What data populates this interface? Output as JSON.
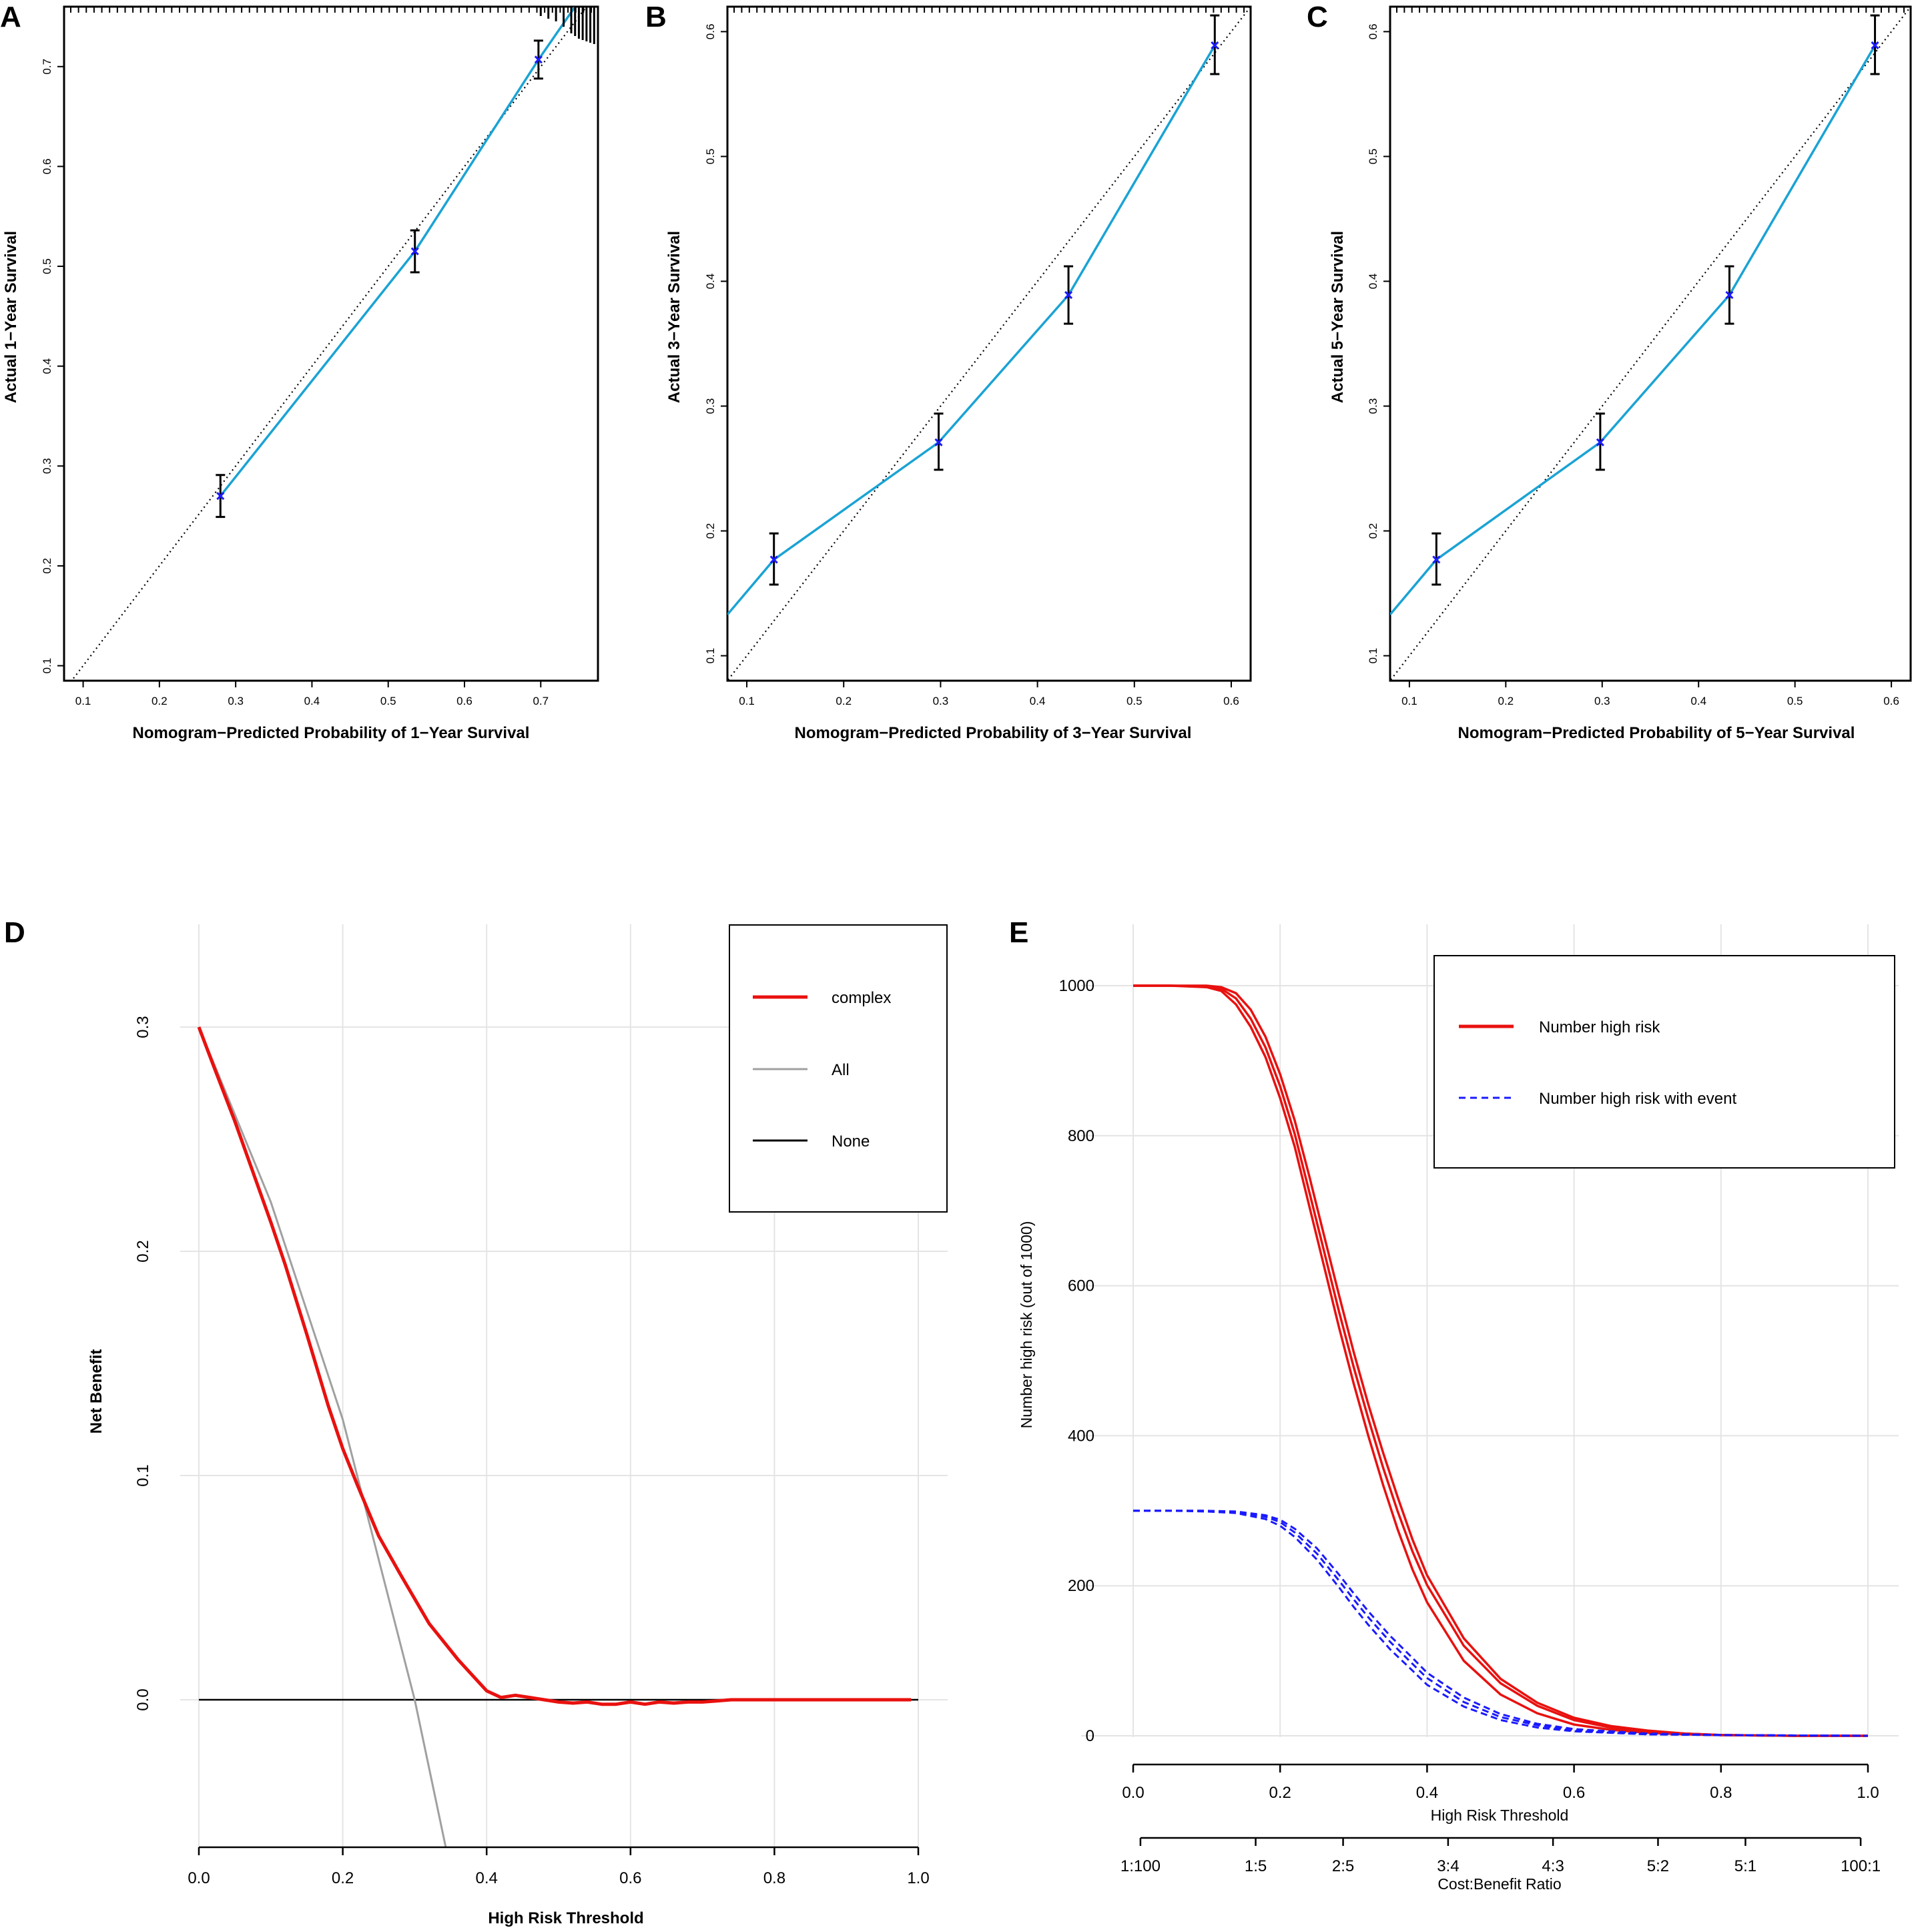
{
  "panels": [
    {
      "letter": "A",
      "xlabel": "Nomogram−Predicted Probability of 1−Year Survival",
      "ylabel": "Actual 1−Year Survival",
      "xticks": [
        "0.1",
        "0.2",
        "0.3",
        "0.4",
        "0.5",
        "0.6",
        "0.7"
      ],
      "yticks": [
        "0.1",
        "0.2",
        "0.3",
        "0.4",
        "0.5",
        "0.6",
        "0.7"
      ]
    },
    {
      "letter": "B",
      "xlabel": "Nomogram−Predicted Probability of 3−Year Survival",
      "ylabel": "Actual 3−Year Survival",
      "xticks": [
        "0.1",
        "0.2",
        "0.3",
        "0.4",
        "0.5",
        "0.6"
      ],
      "yticks": [
        "0.1",
        "0.2",
        "0.3",
        "0.4",
        "0.5",
        "0.6"
      ]
    },
    {
      "letter": "C",
      "xlabel": "Nomogram−Predicted Probability of 5−Year Survival",
      "ylabel": "Actual 5−Year Survival",
      "xticks": [
        "0.1",
        "0.2",
        "0.3",
        "0.4",
        "0.5",
        "0.6"
      ],
      "yticks": [
        "0.1",
        "0.2",
        "0.3",
        "0.4",
        "0.5",
        "0.6"
      ]
    },
    {
      "letter": "D",
      "xlabel": "High Risk Threshold",
      "ylabel": "Net Benefit",
      "xticks": [
        "0.0",
        "0.2",
        "0.4",
        "0.6",
        "0.8",
        "1.0"
      ],
      "yticks": [
        "0.0",
        "0.1",
        "0.2",
        "0.3"
      ],
      "legend": [
        "complex",
        "All",
        "None"
      ]
    },
    {
      "letter": "E",
      "xlabel": "High Risk Threshold",
      "ylabel": "Number high risk (out of 1000)",
      "xlabel2": "Cost:Benefit Ratio",
      "xticks": [
        "0.0",
        "0.2",
        "0.4",
        "0.6",
        "0.8",
        "1.0"
      ],
      "xticks2": [
        "1:100",
        "1:5",
        "2:5",
        "3:4",
        "4:3",
        "5:2",
        "5:1",
        "100:1"
      ],
      "yticks": [
        "0",
        "200",
        "400",
        "600",
        "800",
        "1000"
      ],
      "legend": [
        "Number high risk",
        "Number high risk with event"
      ]
    }
  ],
  "colors": {
    "calibration_line": "#1aa3d4",
    "points": "#1a1aff",
    "complex": "#e8110f",
    "all": "#a0a0a0",
    "none": "#000000",
    "high_risk": "#e8110f",
    "with_event": "#1a1aff",
    "grid": "#e4e4e4"
  },
  "chart_data": [
    {
      "type": "line",
      "panel": "A",
      "title": "",
      "xlabel": "Nomogram−Predicted Probability of 1−Year Survival",
      "ylabel": "Actual 1−Year Survival",
      "xlim": [
        0.075,
        0.775
      ],
      "ylim": [
        0.085,
        0.76
      ],
      "reference_line": "ideal (y = x), dotted",
      "calibration_curve": {
        "x": [
          0.28,
          0.535,
          0.697,
          0.745
        ],
        "y": [
          0.27,
          0.515,
          0.707,
          0.76
        ]
      },
      "points": [
        {
          "x": 0.28,
          "y": 0.27,
          "lo": 0.249,
          "hi": 0.291
        },
        {
          "x": 0.535,
          "y": 0.515,
          "lo": 0.494,
          "hi": 0.536
        },
        {
          "x": 0.697,
          "y": 0.707,
          "lo": 0.688,
          "hi": 0.726
        }
      ]
    },
    {
      "type": "line",
      "panel": "B",
      "title": "",
      "xlabel": "Nomogram−Predicted Probability of 3−Year Survival",
      "ylabel": "Actual 3−Year Survival",
      "xlim": [
        0.08,
        0.62
      ],
      "ylim": [
        0.08,
        0.62
      ],
      "reference_line": "ideal (y = x), dotted",
      "calibration_curve": {
        "x": [
          0.08,
          0.128,
          0.298,
          0.432,
          0.583
        ],
        "y": [
          0.133,
          0.177,
          0.271,
          0.389,
          0.589
        ]
      },
      "points": [
        {
          "x": 0.128,
          "y": 0.177,
          "lo": 0.157,
          "hi": 0.198
        },
        {
          "x": 0.298,
          "y": 0.271,
          "lo": 0.249,
          "hi": 0.294
        },
        {
          "x": 0.432,
          "y": 0.389,
          "lo": 0.366,
          "hi": 0.412
        },
        {
          "x": 0.583,
          "y": 0.589,
          "lo": 0.566,
          "hi": 0.613
        }
      ]
    },
    {
      "type": "line",
      "panel": "C",
      "title": "",
      "xlabel": "Nomogram−Predicted Probability of 5−Year Survival",
      "ylabel": "Actual 5−Year Survival",
      "xlim": [
        0.08,
        0.62
      ],
      "ylim": [
        0.08,
        0.62
      ],
      "reference_line": "ideal (y = x), dotted",
      "calibration_curve": {
        "x": [
          0.08,
          0.128,
          0.298,
          0.432,
          0.583
        ],
        "y": [
          0.133,
          0.177,
          0.271,
          0.389,
          0.589
        ]
      },
      "points": [
        {
          "x": 0.128,
          "y": 0.177,
          "lo": 0.157,
          "hi": 0.198
        },
        {
          "x": 0.298,
          "y": 0.271,
          "lo": 0.249,
          "hi": 0.294
        },
        {
          "x": 0.432,
          "y": 0.389,
          "lo": 0.366,
          "hi": 0.412
        },
        {
          "x": 0.583,
          "y": 0.589,
          "lo": 0.566,
          "hi": 0.613
        }
      ]
    },
    {
      "type": "line",
      "panel": "D",
      "title": "",
      "xlabel": "High Risk Threshold",
      "ylabel": "Net Benefit",
      "xlim": [
        0,
        1
      ],
      "ylim": [
        -0.065,
        0.33
      ],
      "grid": true,
      "legend_position": "top-right",
      "series": [
        {
          "name": "complex",
          "x": [
            0,
            0.02,
            0.05,
            0.08,
            0.1,
            0.12,
            0.15,
            0.18,
            0.2,
            0.22,
            0.25,
            0.28,
            0.3,
            0.32,
            0.34,
            0.36,
            0.38,
            0.4,
            0.42,
            0.44,
            0.46,
            0.48,
            0.5,
            0.52,
            0.54,
            0.56,
            0.58,
            0.6,
            0.62,
            0.64,
            0.66,
            0.68,
            0.7,
            0.72,
            0.74,
            0.76,
            0.8,
            0.85,
            0.9,
            0.95,
            0.99
          ],
          "y": [
            0.3,
            0.283,
            0.258,
            0.231,
            0.213,
            0.194,
            0.163,
            0.131,
            0.112,
            0.096,
            0.073,
            0.056,
            0.045,
            0.034,
            0.026,
            0.018,
            0.011,
            0.004,
            0.001,
            0.002,
            0.001,
            0.0,
            -0.001,
            -0.0015,
            -0.001,
            -0.002,
            -0.002,
            -0.001,
            -0.002,
            -0.001,
            -0.0015,
            -0.001,
            -0.001,
            -0.0005,
            0.0,
            0.0,
            0.0,
            0.0,
            0.0,
            0.0,
            0.0
          ]
        },
        {
          "name": "All",
          "x": [
            0,
            0.1,
            0.2,
            0.3,
            0.344
          ],
          "y": [
            0.3,
            0.222,
            0.125,
            0.0,
            -0.067
          ]
        },
        {
          "name": "None",
          "x": [
            0,
            1
          ],
          "y": [
            0,
            0
          ]
        }
      ]
    },
    {
      "type": "line",
      "panel": "E",
      "title": "",
      "xlabel": "High Risk Threshold",
      "ylabel": "Number high risk (out of 1000)",
      "xlabel2": "Cost:Benefit Ratio",
      "xlim": [
        0,
        1
      ],
      "ylim": [
        0,
        1000
      ],
      "grid": true,
      "legend_position": "top-right",
      "series": [
        {
          "name": "Number high risk",
          "style": "solid",
          "x": [
            0,
            0.05,
            0.1,
            0.12,
            0.14,
            0.16,
            0.18,
            0.2,
            0.22,
            0.24,
            0.26,
            0.28,
            0.3,
            0.32,
            0.34,
            0.36,
            0.38,
            0.4,
            0.45,
            0.5,
            0.55,
            0.6,
            0.65,
            0.7,
            0.75,
            0.8,
            0.9,
            1.0
          ],
          "y": [
            1000,
            1000,
            998,
            993,
            975,
            945,
            905,
            850,
            785,
            705,
            625,
            545,
            470,
            400,
            335,
            275,
            222,
            178,
            100,
            55,
            30,
            15,
            8,
            4,
            2,
            1,
            0,
            0
          ]
        },
        {
          "name": "Number high risk",
          "style": "solid",
          "x": [
            0,
            0.05,
            0.1,
            0.12,
            0.14,
            0.16,
            0.18,
            0.2,
            0.22,
            0.24,
            0.26,
            0.28,
            0.3,
            0.32,
            0.34,
            0.36,
            0.38,
            0.4,
            0.45,
            0.5,
            0.55,
            0.6,
            0.65,
            0.7,
            0.75,
            0.8,
            0.9,
            1.0
          ],
          "y": [
            1000,
            1000,
            999,
            996,
            983,
            956,
            918,
            866,
            802,
            724,
            645,
            566,
            492,
            423,
            358,
            299,
            246,
            201,
            120,
            70,
            40,
            21,
            11,
            6,
            3,
            1,
            0,
            0
          ]
        },
        {
          "name": "Number high risk",
          "style": "solid",
          "x": [
            0,
            0.05,
            0.1,
            0.12,
            0.14,
            0.16,
            0.18,
            0.2,
            0.22,
            0.24,
            0.26,
            0.28,
            0.3,
            0.32,
            0.34,
            0.36,
            0.38,
            0.4,
            0.45,
            0.5,
            0.55,
            0.6,
            0.65,
            0.7,
            0.75,
            0.8,
            0.9,
            1.0
          ],
          "y": [
            1000,
            1000,
            1000,
            998,
            990,
            968,
            932,
            882,
            820,
            745,
            666,
            588,
            512,
            442,
            378,
            318,
            262,
            214,
            130,
            76,
            44,
            24,
            13,
            7,
            3,
            1,
            0,
            0
          ]
        },
        {
          "name": "Number high risk with event",
          "style": "dashed",
          "x": [
            0,
            0.05,
            0.1,
            0.14,
            0.18,
            0.2,
            0.22,
            0.25,
            0.28,
            0.3,
            0.32,
            0.35,
            0.38,
            0.4,
            0.45,
            0.5,
            0.55,
            0.6,
            0.7,
            0.8,
            1.0
          ],
          "y": [
            300,
            300,
            299,
            297,
            289,
            280,
            265,
            235,
            198,
            172,
            148,
            115,
            87,
            68,
            39,
            21,
            11,
            6,
            2,
            1,
            0
          ]
        },
        {
          "name": "Number high risk with event",
          "style": "dashed",
          "x": [
            0,
            0.05,
            0.1,
            0.14,
            0.18,
            0.2,
            0.22,
            0.25,
            0.28,
            0.3,
            0.32,
            0.35,
            0.38,
            0.4,
            0.45,
            0.5,
            0.55,
            0.6,
            0.7,
            0.8,
            1.0
          ],
          "y": [
            300,
            300,
            300,
            298,
            292,
            285,
            271,
            243,
            207,
            182,
            158,
            125,
            96,
            77,
            45,
            25,
            14,
            7,
            2,
            1,
            0
          ]
        },
        {
          "name": "Number high risk with event",
          "style": "dashed",
          "x": [
            0,
            0.05,
            0.1,
            0.14,
            0.18,
            0.2,
            0.22,
            0.25,
            0.28,
            0.3,
            0.32,
            0.35,
            0.38,
            0.4,
            0.45,
            0.5,
            0.55,
            0.6,
            0.7,
            0.8,
            1.0
          ],
          "y": [
            300,
            300,
            300,
            299,
            294,
            288,
            276,
            250,
            215,
            190,
            166,
            133,
            104,
            84,
            51,
            29,
            16,
            9,
            3,
            1,
            0
          ]
        }
      ],
      "secondary_axis": {
        "label": "Cost:Benefit Ratio",
        "ticks": [
          "1:100",
          "1:5",
          "2:5",
          "3:4",
          "4:3",
          "5:2",
          "5:1",
          "100:1"
        ],
        "positions": [
          0.0099,
          0.1667,
          0.2857,
          0.4286,
          0.5714,
          0.7143,
          0.8333,
          0.9901
        ]
      }
    }
  ]
}
